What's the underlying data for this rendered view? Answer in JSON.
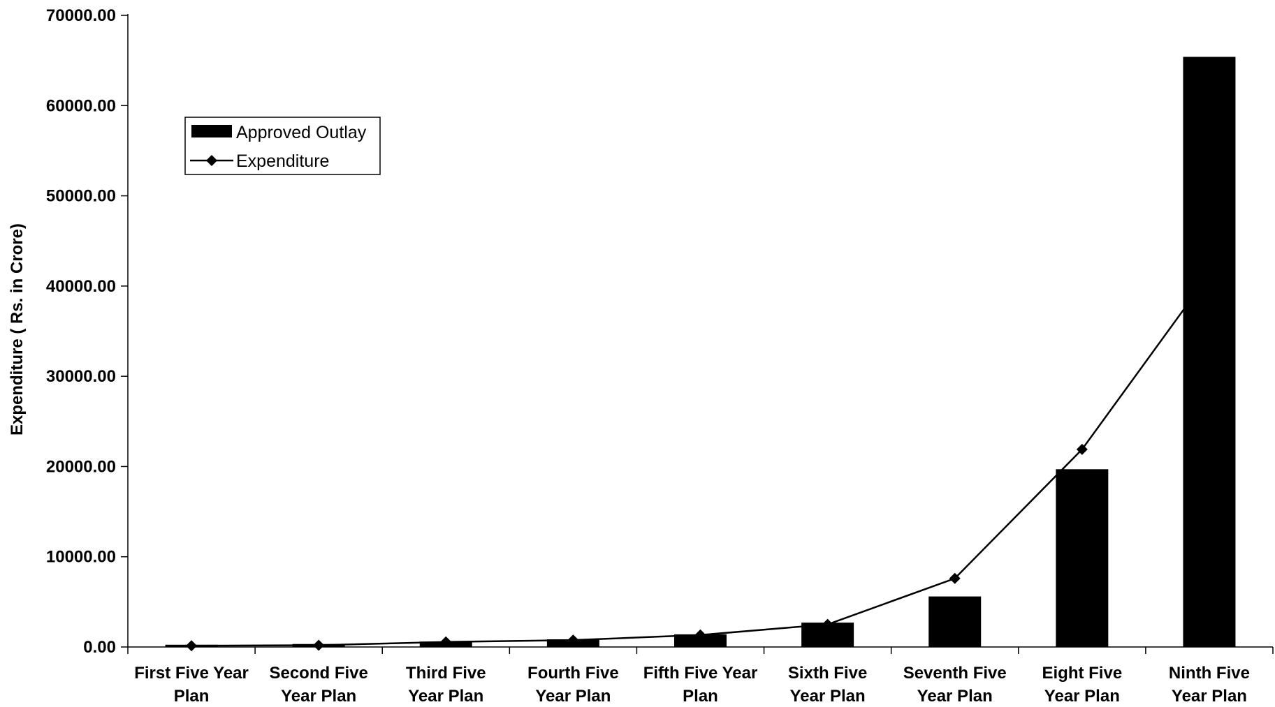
{
  "chart_data": {
    "type": "bar",
    "categories": [
      [
        "First Five Year",
        "Plan"
      ],
      [
        "Second Five",
        "Year Plan"
      ],
      [
        "Third Five",
        "Year Plan"
      ],
      [
        "Fourth Five",
        "Year Plan"
      ],
      [
        "Fifth Five Year",
        "Plan"
      ],
      [
        "Sixth Five",
        "Year Plan"
      ],
      [
        "Seventh Five",
        "Year Plan"
      ],
      [
        "Eight Five",
        "Year Plan"
      ],
      [
        "Ninth Five",
        "Year Plan"
      ]
    ],
    "series": [
      {
        "name": "Approved Outlay",
        "kind": "bar",
        "values": [
          250,
          330,
          600,
          850,
          1400,
          2700,
          5600,
          19700,
          65400
        ]
      },
      {
        "name": "Expenditure",
        "kind": "line",
        "marker": "diamond",
        "values": [
          140,
          190,
          560,
          760,
          1330,
          2500,
          7600,
          21900,
          41300
        ]
      }
    ],
    "ylabel": "Expenditure ( Rs. in Crore)",
    "xlabel": "",
    "title": "",
    "ylim": [
      0,
      70000
    ],
    "yticks": [
      "0.00",
      "10000.00",
      "20000.00",
      "30000.00",
      "40000.00",
      "50000.00",
      "60000.00",
      "70000.00"
    ],
    "grid": false,
    "legend": "top-left",
    "colors": {
      "bar": "#000000",
      "line": "#000000"
    }
  }
}
